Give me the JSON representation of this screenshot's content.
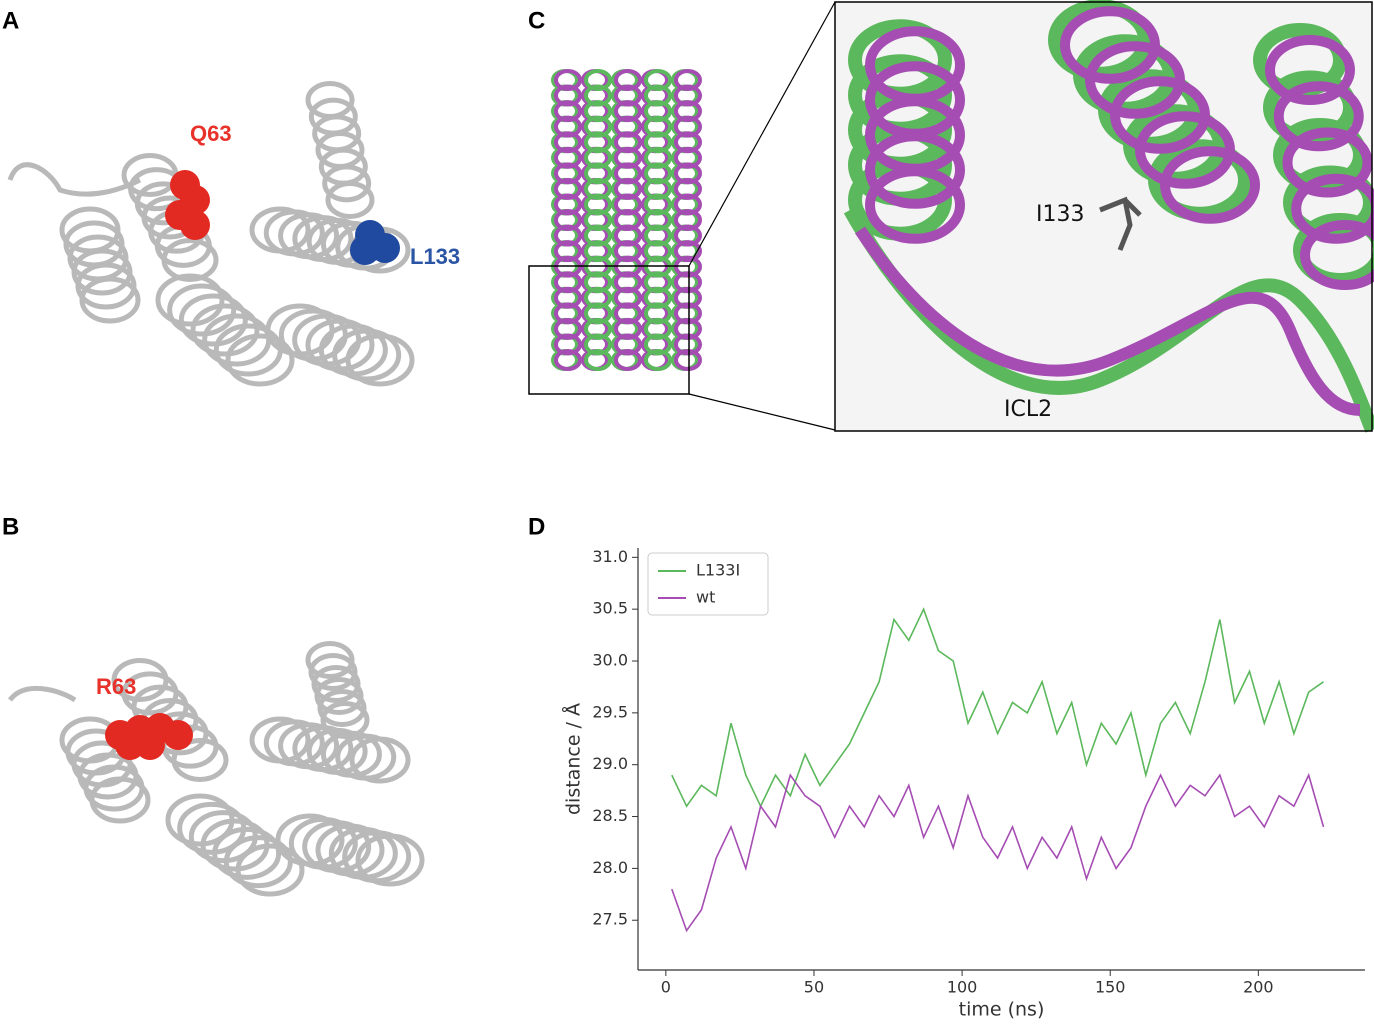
{
  "panels": [
    {
      "label": "A",
      "annotations": [
        "Q63",
        "L133"
      ]
    },
    {
      "label": "B",
      "annotations": [
        "R63"
      ]
    },
    {
      "label": "C",
      "annotations": [
        "I133",
        "ICL2"
      ]
    },
    {
      "label": "D"
    }
  ],
  "chart_data": {
    "type": "line",
    "xlabel": "time (ns)",
    "ylabel": "distance / Å",
    "x": [
      2,
      7,
      12,
      17,
      22,
      27,
      32,
      37,
      42,
      47,
      52,
      57,
      62,
      67,
      72,
      77,
      82,
      87,
      92,
      97,
      102,
      107,
      112,
      117,
      122,
      127,
      132,
      137,
      142,
      147,
      152,
      157,
      162,
      167,
      172,
      177,
      182,
      187,
      192,
      197,
      202,
      207,
      212,
      217,
      222
    ],
    "series": [
      {
        "name": "L133I",
        "color": "#5cb85c",
        "values": [
          28.9,
          28.6,
          28.8,
          28.7,
          29.4,
          28.9,
          28.6,
          28.9,
          28.7,
          29.1,
          28.8,
          29.0,
          29.2,
          29.5,
          29.8,
          30.4,
          30.2,
          30.5,
          30.1,
          30.0,
          29.4,
          29.7,
          29.3,
          29.6,
          29.5,
          29.8,
          29.3,
          29.6,
          29.0,
          29.4,
          29.2,
          29.5,
          28.9,
          29.4,
          29.6,
          29.3,
          29.8,
          30.4,
          29.6,
          29.9,
          29.4,
          29.8,
          29.3,
          29.7,
          29.8
        ]
      },
      {
        "name": "wt",
        "color": "#a54db3",
        "values": [
          27.8,
          27.4,
          27.6,
          28.1,
          28.4,
          28.0,
          28.6,
          28.4,
          28.9,
          28.7,
          28.6,
          28.3,
          28.6,
          28.4,
          28.7,
          28.5,
          28.8,
          28.3,
          28.6,
          28.2,
          28.7,
          28.3,
          28.1,
          28.4,
          28.0,
          28.3,
          28.1,
          28.4,
          27.9,
          28.3,
          28.0,
          28.2,
          28.6,
          28.9,
          28.6,
          28.8,
          28.7,
          28.9,
          28.5,
          28.6,
          28.4,
          28.7,
          28.6,
          28.9,
          28.4
        ]
      }
    ],
    "xlim": [
      -9.4,
      236
    ],
    "ylim": [
      27.02,
      31.09
    ],
    "xticks": [
      0,
      50,
      100,
      150,
      200
    ],
    "yticks": [
      27.5,
      {
        "value": 28.0,
        "label": "28.0"
      },
      28.5,
      {
        "value": 29.0,
        "label": "29.0"
      },
      29.5,
      {
        "value": 30.0,
        "label": "30.0"
      },
      30.5,
      {
        "value": 31.0,
        "label": "31.0"
      }
    ],
    "legend": "upper left"
  }
}
